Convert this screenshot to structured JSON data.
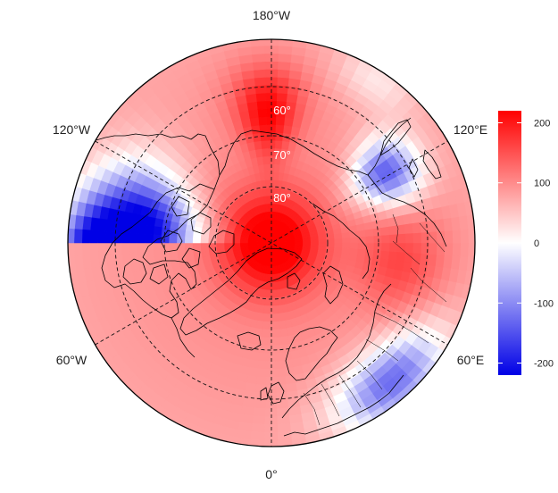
{
  "map": {
    "projection": "north-polar-stereographic",
    "center_longitude_bottom": "0°",
    "longitude_labels": {
      "top": "180°W",
      "bottom": "0°",
      "upper_left": "120°W",
      "lower_left": "60°W",
      "upper_right": "120°E",
      "lower_right": "60°E"
    },
    "latitude_labels": [
      "60°",
      "70°",
      "80°"
    ],
    "latitude_circles": [
      50,
      60,
      70,
      80
    ],
    "meridians": [
      0,
      60,
      120,
      180,
      240,
      300
    ]
  },
  "colorbar": {
    "range": [
      -220,
      220
    ],
    "ticks": [
      200,
      100,
      0,
      -100,
      -200
    ],
    "tick_labels": [
      "200",
      "100",
      "0",
      "-100",
      "-200"
    ],
    "colors": {
      "low": "#0000e6",
      "mid": "#ffffff",
      "high": "#ff0000"
    }
  },
  "colors": {
    "grid": "#111111",
    "coast": "#000000",
    "text": "#222222",
    "lat_text": "#ffffff"
  }
}
